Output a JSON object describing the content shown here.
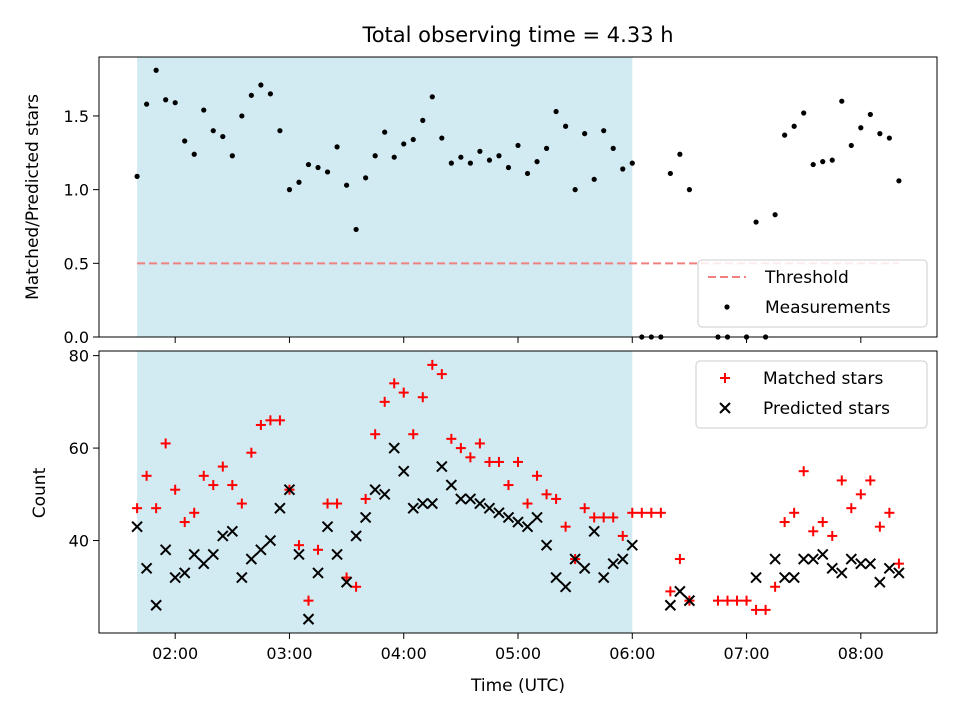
{
  "chart_data": [
    {
      "type": "scatter",
      "title": "Total observing time = 4.33 h",
      "ylabel": "Matched/Predicted stars",
      "ylim": [
        0,
        1.9
      ],
      "yticks": [
        {
          "v": 0,
          "label": "0.0"
        },
        {
          "v": 0.5,
          "label": "0.5"
        },
        {
          "v": 1.0,
          "label": "1.0"
        },
        {
          "v": 1.5,
          "label": "1.5"
        }
      ],
      "grid": false,
      "legend_position": "lower-right",
      "threshold": {
        "name": "Threshold",
        "value": 0.5,
        "color": "#f08080"
      },
      "span_color": "#add8e6",
      "series": [
        {
          "name": "Measurements",
          "marker": "dot",
          "color": "#000000",
          "points": [
            [
              "01:40",
              1.09
            ],
            [
              "01:45",
              1.58
            ],
            [
              "01:50",
              1.81
            ],
            [
              "01:55",
              1.61
            ],
            [
              "02:00",
              1.59
            ],
            [
              "02:05",
              1.33
            ],
            [
              "02:10",
              1.24
            ],
            [
              "02:15",
              1.54
            ],
            [
              "02:20",
              1.4
            ],
            [
              "02:25",
              1.36
            ],
            [
              "02:30",
              1.23
            ],
            [
              "02:35",
              1.5
            ],
            [
              "02:40",
              1.64
            ],
            [
              "02:45",
              1.71
            ],
            [
              "02:50",
              1.65
            ],
            [
              "02:55",
              1.4
            ],
            [
              "03:00",
              1.0
            ],
            [
              "03:05",
              1.05
            ],
            [
              "03:10",
              1.17
            ],
            [
              "03:15",
              1.15
            ],
            [
              "03:20",
              1.12
            ],
            [
              "03:25",
              1.29
            ],
            [
              "03:30",
              1.03
            ],
            [
              "03:35",
              0.73
            ],
            [
              "03:40",
              1.08
            ],
            [
              "03:45",
              1.23
            ],
            [
              "03:50",
              1.39
            ],
            [
              "03:55",
              1.22
            ],
            [
              "04:00",
              1.31
            ],
            [
              "04:05",
              1.34
            ],
            [
              "04:10",
              1.47
            ],
            [
              "04:15",
              1.63
            ],
            [
              "04:20",
              1.35
            ],
            [
              "04:25",
              1.18
            ],
            [
              "04:30",
              1.22
            ],
            [
              "04:35",
              1.18
            ],
            [
              "04:40",
              1.26
            ],
            [
              "04:45",
              1.2
            ],
            [
              "04:50",
              1.23
            ],
            [
              "04:55",
              1.15
            ],
            [
              "05:00",
              1.3
            ],
            [
              "05:05",
              1.11
            ],
            [
              "05:10",
              1.19
            ],
            [
              "05:15",
              1.28
            ],
            [
              "05:20",
              1.53
            ],
            [
              "05:25",
              1.43
            ],
            [
              "05:30",
              1.0
            ],
            [
              "05:35",
              1.38
            ],
            [
              "05:40",
              1.07
            ],
            [
              "05:45",
              1.4
            ],
            [
              "05:50",
              1.28
            ],
            [
              "05:55",
              1.14
            ],
            [
              "06:00",
              1.18
            ],
            [
              "06:05",
              0.0
            ],
            [
              "06:10",
              0.0
            ],
            [
              "06:15",
              0.0
            ],
            [
              "06:20",
              1.11
            ],
            [
              "06:25",
              1.24
            ],
            [
              "06:30",
              1.0
            ],
            [
              "06:45",
              0.0
            ],
            [
              "06:50",
              0.0
            ],
            [
              "07:00",
              0.0
            ],
            [
              "07:05",
              0.78
            ],
            [
              "07:10",
              0.0
            ],
            [
              "07:15",
              0.83
            ],
            [
              "07:20",
              1.37
            ],
            [
              "07:25",
              1.43
            ],
            [
              "07:30",
              1.52
            ],
            [
              "07:35",
              1.17
            ],
            [
              "07:40",
              1.19
            ],
            [
              "07:45",
              1.2
            ],
            [
              "07:50",
              1.6
            ],
            [
              "07:55",
              1.3
            ],
            [
              "08:00",
              1.42
            ],
            [
              "08:05",
              1.51
            ],
            [
              "08:10",
              1.38
            ],
            [
              "08:15",
              1.35
            ],
            [
              "08:20",
              1.06
            ]
          ]
        }
      ]
    },
    {
      "type": "scatter",
      "xlabel": "Time (UTC)",
      "ylabel": "Count",
      "ylim": [
        20,
        81
      ],
      "yticks": [
        {
          "v": 40,
          "label": "40"
        },
        {
          "v": 60,
          "label": "60"
        },
        {
          "v": 80,
          "label": "80"
        }
      ],
      "xlim": [
        "01:20",
        "08:40"
      ],
      "xticks": [
        "02:00",
        "03:00",
        "04:00",
        "05:00",
        "06:00",
        "07:00",
        "08:00"
      ],
      "grid": false,
      "legend_position": "upper-right",
      "span": [
        "01:40",
        "06:00"
      ],
      "span_color": "#add8e6",
      "series": [
        {
          "name": "Matched stars",
          "marker": "plus",
          "color": "#ff0000",
          "points": [
            [
              "01:40",
              47
            ],
            [
              "01:45",
              54
            ],
            [
              "01:50",
              47
            ],
            [
              "01:55",
              61
            ],
            [
              "02:00",
              51
            ],
            [
              "02:05",
              44
            ],
            [
              "02:10",
              46
            ],
            [
              "02:15",
              54
            ],
            [
              "02:20",
              52
            ],
            [
              "02:25",
              56
            ],
            [
              "02:30",
              52
            ],
            [
              "02:35",
              48
            ],
            [
              "02:40",
              59
            ],
            [
              "02:45",
              65
            ],
            [
              "02:50",
              66
            ],
            [
              "02:55",
              66
            ],
            [
              "03:00",
              51
            ],
            [
              "03:05",
              39
            ],
            [
              "03:10",
              27
            ],
            [
              "03:15",
              38
            ],
            [
              "03:20",
              48
            ],
            [
              "03:25",
              48
            ],
            [
              "03:30",
              32
            ],
            [
              "03:35",
              30
            ],
            [
              "03:40",
              49
            ],
            [
              "03:45",
              63
            ],
            [
              "03:50",
              70
            ],
            [
              "03:55",
              74
            ],
            [
              "04:00",
              72
            ],
            [
              "04:05",
              63
            ],
            [
              "04:10",
              71
            ],
            [
              "04:15",
              78
            ],
            [
              "04:20",
              76
            ],
            [
              "04:25",
              62
            ],
            [
              "04:30",
              60
            ],
            [
              "04:35",
              58
            ],
            [
              "04:40",
              61
            ],
            [
              "04:45",
              57
            ],
            [
              "04:50",
              57
            ],
            [
              "04:55",
              52
            ],
            [
              "05:00",
              57
            ],
            [
              "05:05",
              48
            ],
            [
              "05:10",
              54
            ],
            [
              "05:15",
              50
            ],
            [
              "05:20",
              49
            ],
            [
              "05:25",
              43
            ],
            [
              "05:30",
              36
            ],
            [
              "05:35",
              47
            ],
            [
              "05:40",
              45
            ],
            [
              "05:45",
              45
            ],
            [
              "05:50",
              45
            ],
            [
              "05:55",
              41
            ],
            [
              "06:00",
              46
            ],
            [
              "06:05",
              46
            ],
            [
              "06:10",
              46
            ],
            [
              "06:15",
              46
            ],
            [
              "06:20",
              29
            ],
            [
              "06:25",
              36
            ],
            [
              "06:30",
              27
            ],
            [
              "06:45",
              27
            ],
            [
              "06:50",
              27
            ],
            [
              "06:55",
              27
            ],
            [
              "07:00",
              27
            ],
            [
              "07:05",
              25
            ],
            [
              "07:10",
              25
            ],
            [
              "07:15",
              30
            ],
            [
              "07:20",
              44
            ],
            [
              "07:25",
              46
            ],
            [
              "07:30",
              55
            ],
            [
              "07:35",
              42
            ],
            [
              "07:40",
              44
            ],
            [
              "07:45",
              41
            ],
            [
              "07:50",
              53
            ],
            [
              "07:55",
              47
            ],
            [
              "08:00",
              50
            ],
            [
              "08:05",
              53
            ],
            [
              "08:10",
              43
            ],
            [
              "08:15",
              46
            ],
            [
              "08:20",
              35
            ]
          ]
        },
        {
          "name": "Predicted stars",
          "marker": "x",
          "color": "#000000",
          "points": [
            [
              "01:40",
              43
            ],
            [
              "01:45",
              34
            ],
            [
              "01:50",
              26
            ],
            [
              "01:55",
              38
            ],
            [
              "02:00",
              32
            ],
            [
              "02:05",
              33
            ],
            [
              "02:10",
              37
            ],
            [
              "02:15",
              35
            ],
            [
              "02:20",
              37
            ],
            [
              "02:25",
              41
            ],
            [
              "02:30",
              42
            ],
            [
              "02:35",
              32
            ],
            [
              "02:40",
              36
            ],
            [
              "02:45",
              38
            ],
            [
              "02:50",
              40
            ],
            [
              "02:55",
              47
            ],
            [
              "03:00",
              51
            ],
            [
              "03:05",
              37
            ],
            [
              "03:10",
              23
            ],
            [
              "03:15",
              33
            ],
            [
              "03:20",
              43
            ],
            [
              "03:25",
              37
            ],
            [
              "03:30",
              31
            ],
            [
              "03:35",
              41
            ],
            [
              "03:40",
              45
            ],
            [
              "03:45",
              51
            ],
            [
              "03:50",
              50
            ],
            [
              "03:55",
              60
            ],
            [
              "04:00",
              55
            ],
            [
              "04:05",
              47
            ],
            [
              "04:10",
              48
            ],
            [
              "04:15",
              48
            ],
            [
              "04:20",
              56
            ],
            [
              "04:25",
              52
            ],
            [
              "04:30",
              49
            ],
            [
              "04:35",
              49
            ],
            [
              "04:40",
              48
            ],
            [
              "04:45",
              47
            ],
            [
              "04:50",
              46
            ],
            [
              "04:55",
              45
            ],
            [
              "05:00",
              44
            ],
            [
              "05:05",
              43
            ],
            [
              "05:10",
              45
            ],
            [
              "05:15",
              39
            ],
            [
              "05:20",
              32
            ],
            [
              "05:25",
              30
            ],
            [
              "05:30",
              36
            ],
            [
              "05:35",
              34
            ],
            [
              "05:40",
              42
            ],
            [
              "05:45",
              32
            ],
            [
              "05:50",
              35
            ],
            [
              "05:55",
              36
            ],
            [
              "06:00",
              39
            ],
            [
              "06:20",
              26
            ],
            [
              "06:25",
              29
            ],
            [
              "06:30",
              27
            ],
            [
              "07:05",
              32
            ],
            [
              "07:15",
              36
            ],
            [
              "07:20",
              32
            ],
            [
              "07:25",
              32
            ],
            [
              "07:30",
              36
            ],
            [
              "07:35",
              36
            ],
            [
              "07:40",
              37
            ],
            [
              "07:45",
              34
            ],
            [
              "07:50",
              33
            ],
            [
              "07:55",
              36
            ],
            [
              "08:00",
              35
            ],
            [
              "08:05",
              35
            ],
            [
              "08:10",
              31
            ],
            [
              "08:15",
              34
            ],
            [
              "08:20",
              33
            ]
          ]
        }
      ]
    }
  ]
}
